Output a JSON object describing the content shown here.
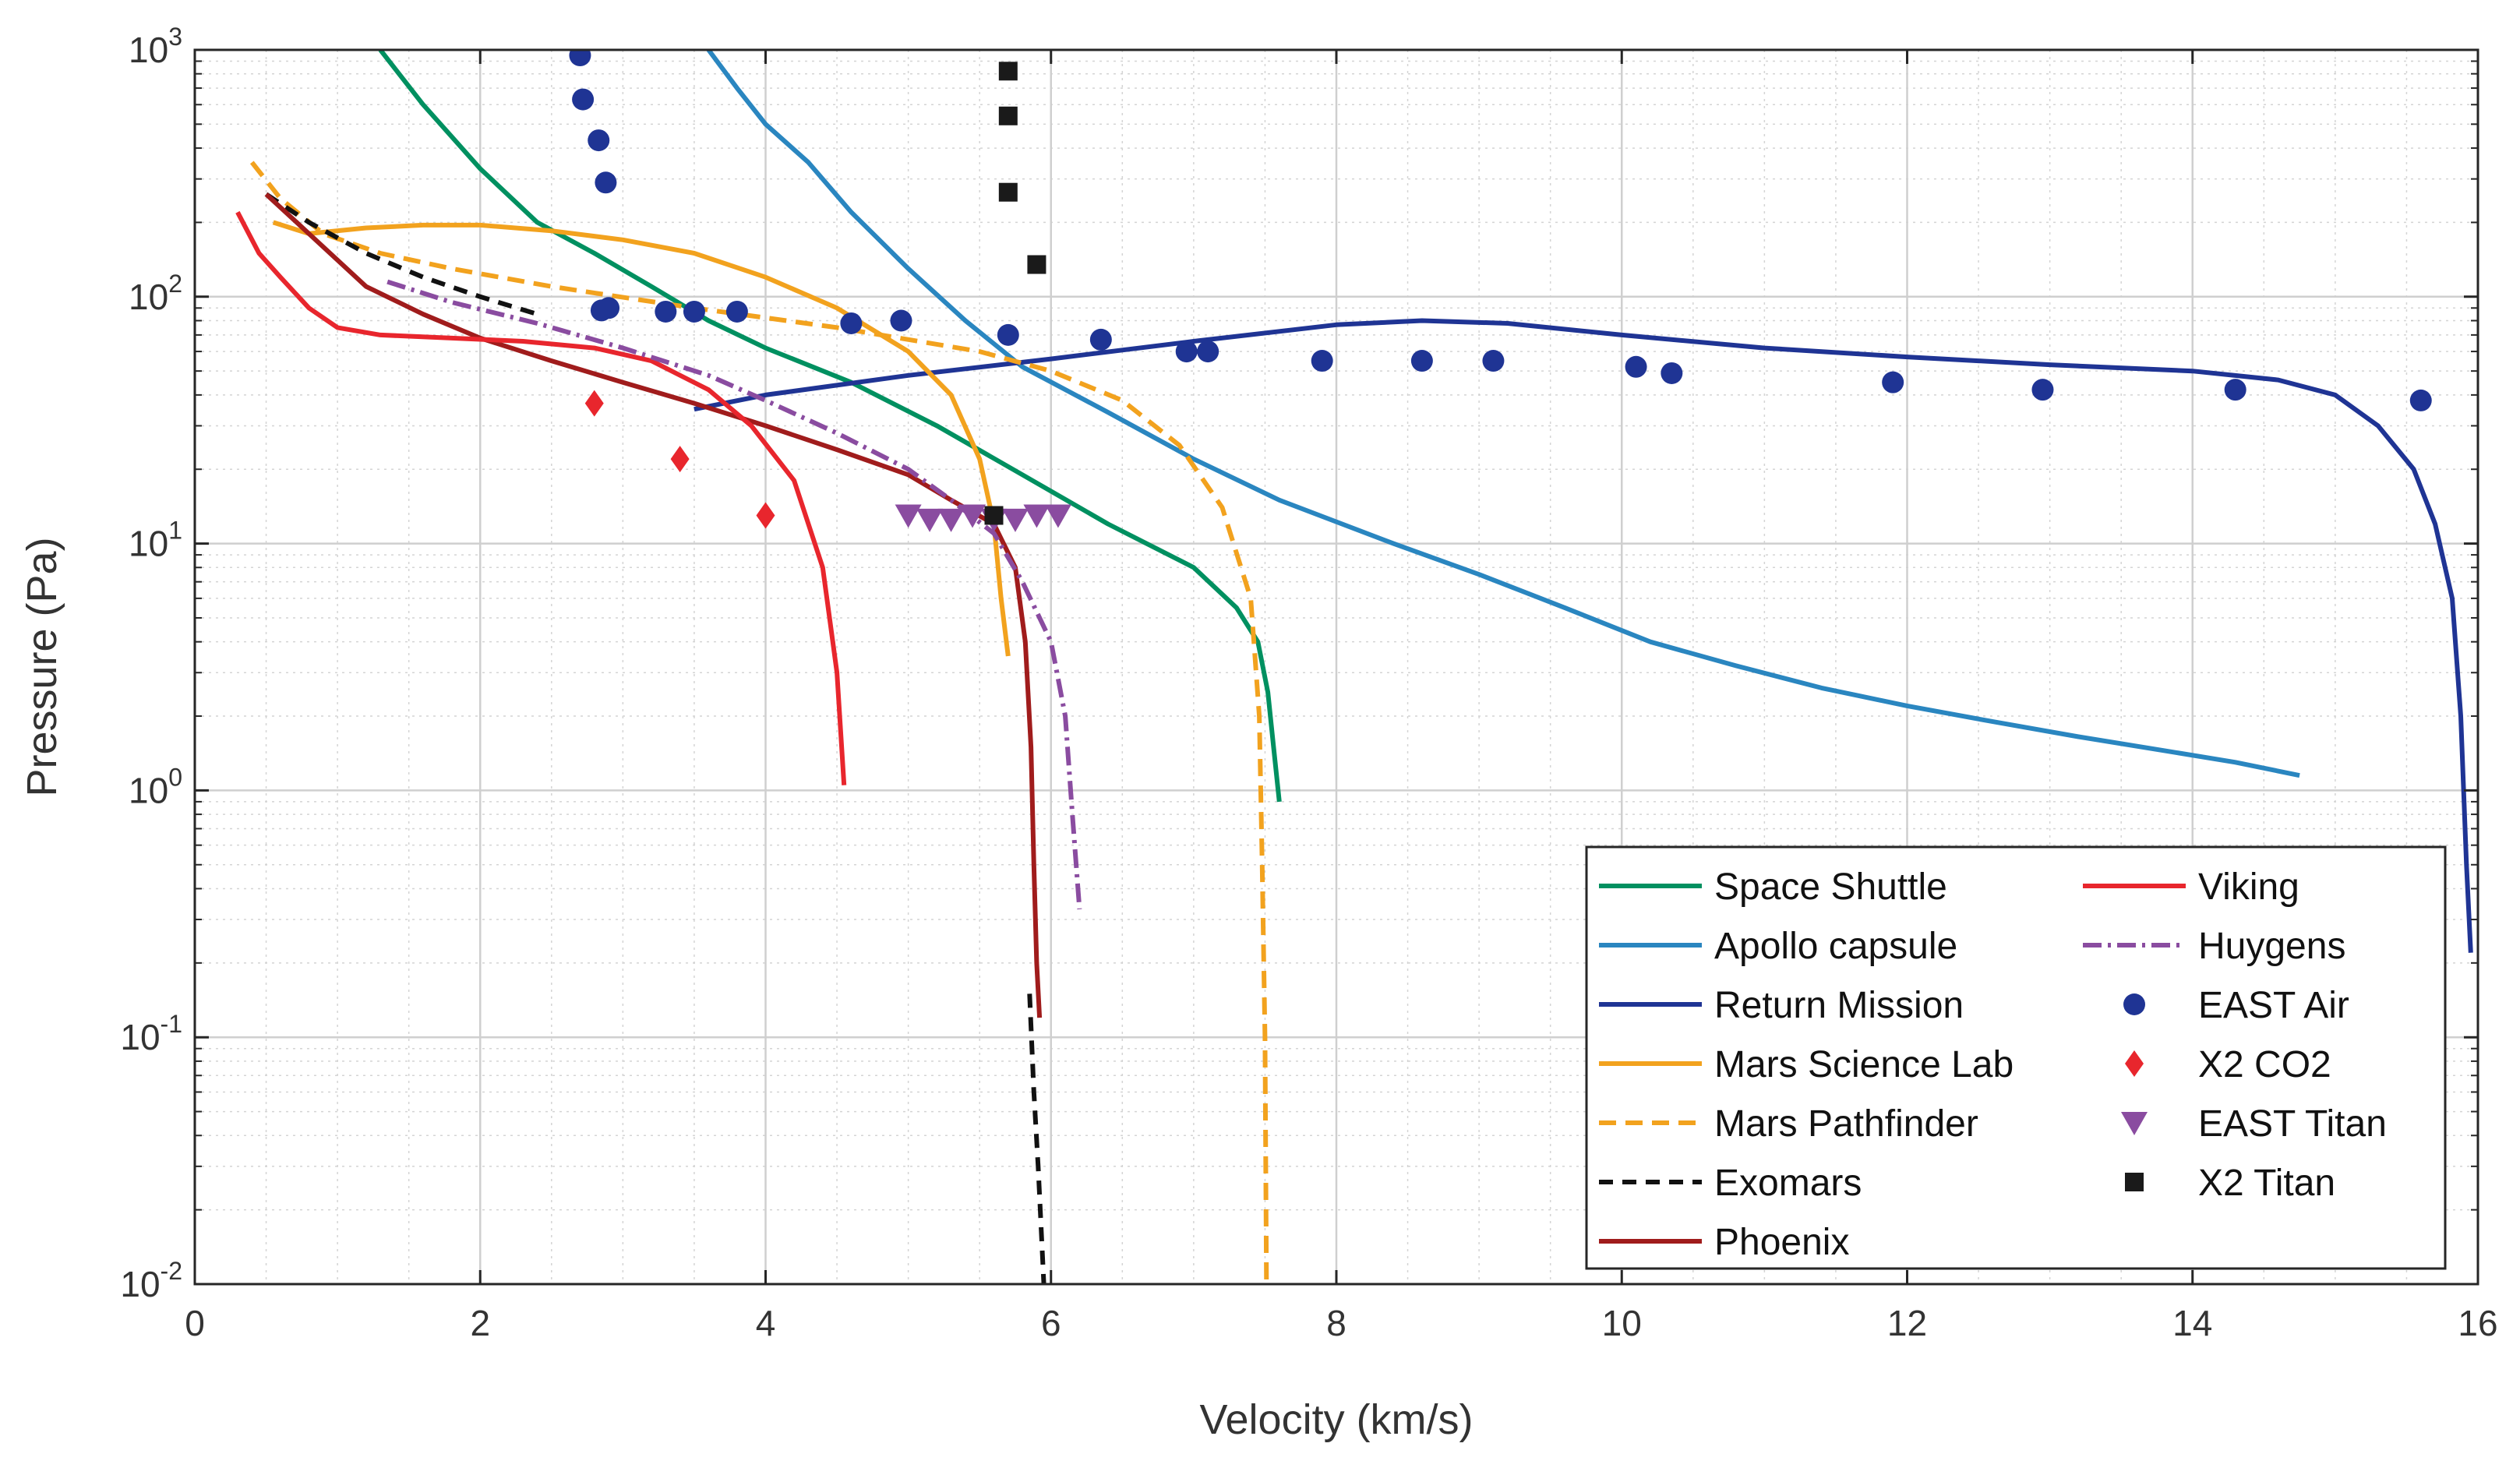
{
  "chart_data": {
    "type": "line",
    "title": "",
    "xlabel": "Velocity (km/s)",
    "ylabel": "Pressure (Pa)",
    "xlim": [
      0,
      16
    ],
    "ylim_log10": [
      -2,
      3
    ],
    "y_scale": "log",
    "grid": true,
    "minor_grid": true,
    "legend_position": "bottom-right",
    "x_ticks": [
      0,
      2,
      4,
      6,
      8,
      10,
      12,
      14,
      16
    ],
    "x_tick_labels": [
      "0",
      "2",
      "4",
      "6",
      "8",
      "10",
      "12",
      "14",
      "16"
    ],
    "y_ticks": [
      {
        "exp": -2,
        "base": "10",
        "power": "-2"
      },
      {
        "exp": -1,
        "base": "10",
        "power": "-1"
      },
      {
        "exp": 0,
        "base": "10",
        "power": "0"
      },
      {
        "exp": 1,
        "base": "10",
        "power": "1"
      },
      {
        "exp": 2,
        "base": "10",
        "power": "2"
      },
      {
        "exp": 3,
        "base": "10",
        "power": "3"
      }
    ],
    "series": [
      {
        "name": "Space Shuttle",
        "kind": "line",
        "color": "#009060",
        "dash": "",
        "points": [
          [
            1.3,
            1000
          ],
          [
            1.6,
            600
          ],
          [
            2.0,
            330
          ],
          [
            2.4,
            200
          ],
          [
            2.8,
            150
          ],
          [
            3.2,
            110
          ],
          [
            3.6,
            80
          ],
          [
            4.0,
            62
          ],
          [
            4.6,
            45
          ],
          [
            5.2,
            30
          ],
          [
            5.8,
            19
          ],
          [
            6.4,
            12
          ],
          [
            7.0,
            8
          ],
          [
            7.3,
            5.5
          ],
          [
            7.45,
            4
          ],
          [
            7.52,
            2.5
          ],
          [
            7.56,
            1.5
          ],
          [
            7.6,
            0.9
          ]
        ]
      },
      {
        "name": "Apollo capsule",
        "kind": "line",
        "color": "#2a86c0",
        "dash": "",
        "points": [
          [
            3.6,
            1000
          ],
          [
            3.8,
            700
          ],
          [
            4.0,
            500
          ],
          [
            4.3,
            350
          ],
          [
            4.6,
            220
          ],
          [
            5.0,
            130
          ],
          [
            5.4,
            80
          ],
          [
            5.8,
            52
          ],
          [
            6.4,
            34
          ],
          [
            7.0,
            22
          ],
          [
            7.6,
            15
          ],
          [
            8.4,
            10
          ],
          [
            9.0,
            7.5
          ],
          [
            9.6,
            5.5
          ],
          [
            10.2,
            4
          ],
          [
            10.8,
            3.2
          ],
          [
            11.4,
            2.6
          ],
          [
            12.0,
            2.2
          ],
          [
            12.6,
            1.9
          ],
          [
            13.2,
            1.65
          ],
          [
            13.8,
            1.45
          ],
          [
            14.3,
            1.3
          ],
          [
            14.75,
            1.15
          ]
        ]
      },
      {
        "name": "Return Mission",
        "kind": "line",
        "color": "#1f3494",
        "dash": "",
        "points": [
          [
            3.5,
            35
          ],
          [
            4.0,
            40
          ],
          [
            5.0,
            48
          ],
          [
            6.0,
            56
          ],
          [
            7.0,
            66
          ],
          [
            8.0,
            77
          ],
          [
            8.6,
            80
          ],
          [
            9.2,
            78
          ],
          [
            10.0,
            70
          ],
          [
            11.0,
            62
          ],
          [
            12.0,
            57
          ],
          [
            13.0,
            53
          ],
          [
            14.0,
            50
          ],
          [
            14.6,
            46
          ],
          [
            15.0,
            40
          ],
          [
            15.3,
            30
          ],
          [
            15.55,
            20
          ],
          [
            15.7,
            12
          ],
          [
            15.82,
            6
          ],
          [
            15.88,
            2
          ],
          [
            15.92,
            0.5
          ],
          [
            15.95,
            0.22
          ]
        ]
      },
      {
        "name": "Mars Science Lab",
        "kind": "line",
        "color": "#f2a21e",
        "dash": "",
        "points": [
          [
            0.55,
            200
          ],
          [
            0.8,
            180
          ],
          [
            1.2,
            190
          ],
          [
            1.6,
            195
          ],
          [
            2.0,
            195
          ],
          [
            2.5,
            185
          ],
          [
            3.0,
            170
          ],
          [
            3.5,
            150
          ],
          [
            4.0,
            120
          ],
          [
            4.5,
            90
          ],
          [
            5.0,
            60
          ],
          [
            5.3,
            40
          ],
          [
            5.5,
            22
          ],
          [
            5.6,
            12
          ],
          [
            5.65,
            6
          ],
          [
            5.7,
            3.5
          ]
        ]
      },
      {
        "name": "Mars Pathfinder",
        "kind": "line",
        "color": "#f2a21e",
        "dash": "22 12",
        "points": [
          [
            0.4,
            350
          ],
          [
            0.6,
            250
          ],
          [
            0.9,
            180
          ],
          [
            1.3,
            150
          ],
          [
            1.8,
            130
          ],
          [
            2.5,
            110
          ],
          [
            3.5,
            90
          ],
          [
            4.5,
            75
          ],
          [
            5.5,
            60
          ],
          [
            6.0,
            50
          ],
          [
            6.5,
            38
          ],
          [
            6.9,
            25
          ],
          [
            7.2,
            14
          ],
          [
            7.4,
            6
          ],
          [
            7.46,
            2
          ],
          [
            7.48,
            0.5
          ],
          [
            7.5,
            0.1
          ],
          [
            7.51,
            0.01
          ]
        ]
      },
      {
        "name": "Exomars",
        "kind": "line",
        "color": "#111111",
        "dash": "18 12",
        "points": [
          [
            0.5,
            260
          ],
          [
            0.8,
            200
          ],
          [
            1.2,
            150
          ],
          [
            1.6,
            120
          ],
          [
            2.0,
            100
          ],
          [
            2.4,
            85
          ]
        ],
        "points2": [
          [
            5.85,
            0.15
          ],
          [
            5.88,
            0.06
          ],
          [
            5.91,
            0.03
          ],
          [
            5.95,
            0.01
          ]
        ]
      },
      {
        "name": "Phoenix",
        "kind": "line",
        "color": "#a01c1c",
        "dash": "",
        "points": [
          [
            0.5,
            260
          ],
          [
            0.8,
            180
          ],
          [
            1.2,
            110
          ],
          [
            1.6,
            85
          ],
          [
            2.0,
            68
          ],
          [
            2.5,
            55
          ],
          [
            3.0,
            45
          ],
          [
            3.5,
            37
          ],
          [
            4.0,
            30
          ],
          [
            4.5,
            24
          ],
          [
            5.0,
            19
          ],
          [
            5.3,
            15
          ],
          [
            5.6,
            12
          ],
          [
            5.75,
            8
          ],
          [
            5.82,
            4
          ],
          [
            5.86,
            1.5
          ],
          [
            5.88,
            0.5
          ],
          [
            5.9,
            0.2
          ],
          [
            5.92,
            0.12
          ]
        ]
      },
      {
        "name": "Viking",
        "kind": "line",
        "color": "#e8262d",
        "dash": "",
        "points": [
          [
            0.3,
            220
          ],
          [
            0.45,
            150
          ],
          [
            0.6,
            120
          ],
          [
            0.8,
            90
          ],
          [
            1.0,
            75
          ],
          [
            1.3,
            70
          ],
          [
            1.8,
            68
          ],
          [
            2.3,
            66
          ],
          [
            2.8,
            62
          ],
          [
            3.2,
            55
          ],
          [
            3.6,
            42
          ],
          [
            3.9,
            30
          ],
          [
            4.2,
            18
          ],
          [
            4.4,
            8
          ],
          [
            4.5,
            3
          ],
          [
            4.55,
            1.05
          ]
        ]
      },
      {
        "name": "Huygens",
        "kind": "line",
        "color": "#8a4ca0",
        "dash": "24 8 4 8",
        "points": [
          [
            1.35,
            115
          ],
          [
            1.8,
            95
          ],
          [
            2.4,
            78
          ],
          [
            3.0,
            62
          ],
          [
            3.6,
            48
          ],
          [
            4.0,
            38
          ],
          [
            4.5,
            28
          ],
          [
            5.0,
            20
          ],
          [
            5.3,
            15
          ],
          [
            5.6,
            11
          ],
          [
            5.8,
            7
          ],
          [
            6.0,
            4
          ],
          [
            6.1,
            2
          ],
          [
            6.15,
            0.8
          ],
          [
            6.2,
            0.33
          ]
        ]
      },
      {
        "name": "EAST Air",
        "kind": "circle",
        "color": "#1f3494",
        "points": [
          [
            2.7,
            950
          ],
          [
            2.72,
            630
          ],
          [
            2.83,
            430
          ],
          [
            2.88,
            290
          ],
          [
            2.85,
            88
          ],
          [
            2.9,
            90
          ],
          [
            3.3,
            87
          ],
          [
            3.5,
            87
          ],
          [
            3.8,
            87
          ],
          [
            4.6,
            78
          ],
          [
            4.95,
            80
          ],
          [
            5.7,
            70
          ],
          [
            6.35,
            67
          ],
          [
            6.95,
            60
          ],
          [
            7.1,
            60
          ],
          [
            7.9,
            55
          ],
          [
            8.6,
            55
          ],
          [
            9.1,
            55
          ],
          [
            10.1,
            52
          ],
          [
            10.35,
            49
          ],
          [
            11.9,
            45
          ],
          [
            12.95,
            42
          ],
          [
            14.3,
            42
          ],
          [
            15.6,
            38
          ]
        ]
      },
      {
        "name": "X2 CO2",
        "kind": "diamond",
        "color": "#e8262d",
        "points": [
          [
            2.8,
            37
          ],
          [
            3.4,
            22
          ],
          [
            4.0,
            13
          ]
        ]
      },
      {
        "name": "EAST Titan",
        "kind": "triangle",
        "color": "#8a4ca0",
        "points": [
          [
            5.0,
            13
          ],
          [
            5.15,
            12.5
          ],
          [
            5.3,
            12.5
          ],
          [
            5.45,
            13
          ],
          [
            5.6,
            12.5
          ],
          [
            5.75,
            12.5
          ],
          [
            5.9,
            13
          ],
          [
            6.05,
            13
          ]
        ]
      },
      {
        "name": "X2 Titan",
        "kind": "square",
        "color": "#1a1a1a",
        "points": [
          [
            5.7,
            820
          ],
          [
            5.7,
            540
          ],
          [
            5.7,
            265
          ],
          [
            5.9,
            135
          ],
          [
            5.6,
            13
          ]
        ]
      }
    ],
    "legend": {
      "columns": [
        [
          "Space Shuttle",
          "Apollo capsule",
          "Return Mission",
          "Mars Science Lab",
          "Mars Pathfinder",
          "Exomars",
          "Phoenix"
        ],
        [
          "Viking",
          "Huygens",
          "EAST Air",
          "X2 CO2",
          "EAST Titan",
          "X2 Titan"
        ]
      ]
    }
  }
}
